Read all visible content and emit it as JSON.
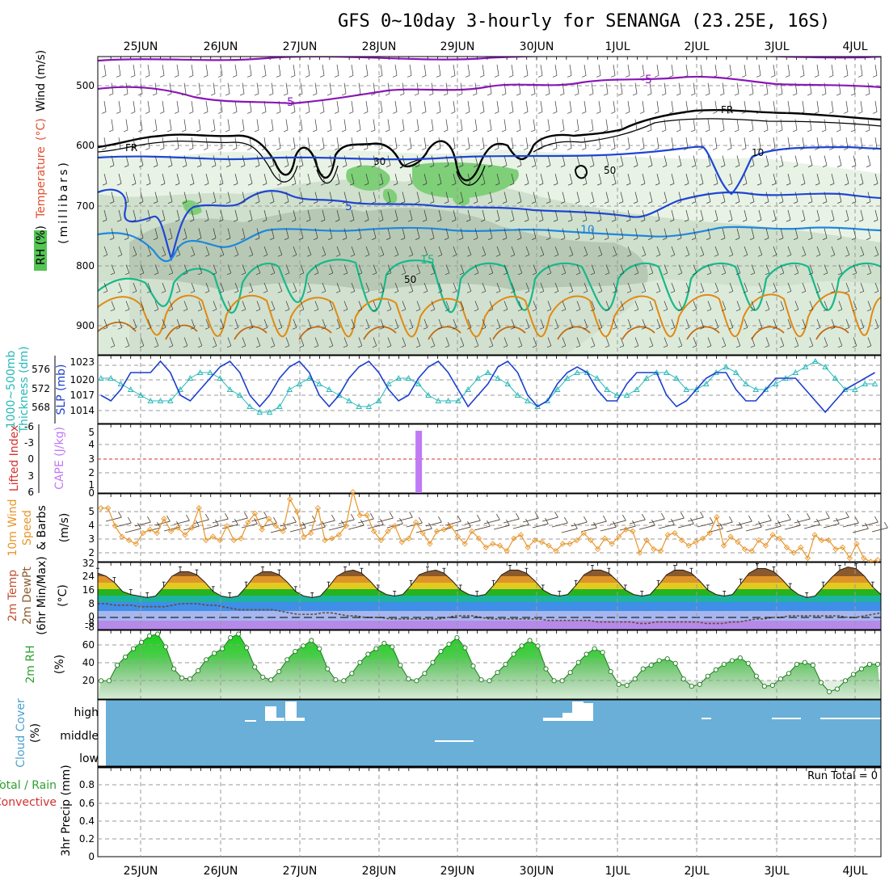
{
  "title": "GFS 0~10day 3-hourly for SENANGA (23.25E, 16S)",
  "date_labels": [
    "25JUN",
    "26JUN",
    "27JUN",
    "28JUN",
    "29JUN",
    "30JUN",
    "1JUL",
    "2JUL",
    "3JUL",
    "4JUL"
  ],
  "colors": {
    "rh_fill": [
      "#e6f1e4",
      "#c9dcc6",
      "#b0c4ad",
      "#7fcf78"
    ],
    "temp_neg5": "#8a16b8",
    "temp_5": "#1f46d6",
    "temp_10": "#1e88e0",
    "temp_15": "#19b88a",
    "temp_warm": "#e08a12",
    "freezing": "#000000",
    "slp": "#1c3fcf",
    "thickness": "#28b8b8",
    "cape": "#c07af5",
    "lifted": "#d43030",
    "wind10": "#e8962a",
    "rh2m": "#2fa02f",
    "cloud": "#6aafd8",
    "run_total": "#000000"
  },
  "panels": {
    "upper": {
      "labels": [
        "RH (%)",
        "Temperature",
        "(°C)",
        "Wind (m/s)"
      ],
      "axis_label": "(millibars)",
      "ticks": [
        "500",
        "600",
        "700",
        "800",
        "900"
      ],
      "contour_labels": [
        "-5",
        "-5",
        "FR",
        "FR",
        "5",
        "10",
        "15",
        "30",
        "50",
        "50",
        "10"
      ]
    },
    "slp": {
      "left_labels": [
        "1000~500mb",
        "Thickness (dm)"
      ],
      "right_label": "SLP (mb)",
      "left_ticks": [
        "576",
        "572",
        "568"
      ],
      "right_ticks": [
        "1023",
        "1020",
        "1017",
        "1014"
      ]
    },
    "cape": {
      "left_label": "Lifted Index",
      "right_label": "CAPE (J/kg)",
      "left_ticks": [
        "-6",
        "-3",
        "0",
        "3",
        "6"
      ],
      "right_ticks": [
        "5",
        "4",
        "3",
        "2",
        "1",
        "0"
      ]
    },
    "wind10": {
      "labels": [
        "10m Wind",
        "Speed",
        "& Barbs",
        "(m/s)"
      ],
      "ticks": [
        "5",
        "4",
        "3",
        "2"
      ]
    },
    "temp2m": {
      "labels": [
        "2m Temp",
        "2m DewPt",
        "(6hr Min/Max)",
        "(°C)"
      ],
      "ticks": [
        "32",
        "24",
        "16",
        "8",
        "0",
        "-8",
        "-8"
      ]
    },
    "rh2m": {
      "labels": [
        "2m RH",
        "(%)"
      ],
      "ticks": [
        "60",
        "40",
        "20"
      ]
    },
    "cloud": {
      "labels": [
        "Cloud Cover",
        "(%)"
      ],
      "ticks": [
        "high",
        "middle",
        "low"
      ]
    },
    "precip": {
      "labels": [
        "Total / Rain",
        "Convective",
        "3hr Precip (mm)"
      ],
      "ticks": [
        "0.8",
        "0.6",
        "0.4",
        "0.2",
        "0"
      ],
      "run_total": "Run Total = 0"
    }
  },
  "chart_data": [
    {
      "type": "line",
      "title": "SLP (mb)",
      "x_start": "2025-06-24T12:00",
      "x_step_hours": 3,
      "ylim": [
        1012,
        1024
      ],
      "series": [
        {
          "name": "SLP (mb)",
          "values": [
            1017,
            1016,
            1018,
            1021,
            1021,
            1021,
            1023,
            1021,
            1017,
            1016,
            1018,
            1020,
            1022,
            1023,
            1021,
            1017,
            1015,
            1017,
            1020,
            1022,
            1023,
            1021,
            1017,
            1015,
            1017,
            1020,
            1022,
            1023,
            1021,
            1018,
            1016,
            1017,
            1020,
            1022,
            1023,
            1021,
            1018,
            1015,
            1017,
            1019,
            1022,
            1023,
            1021,
            1017,
            1015,
            1016,
            1019,
            1021,
            1022,
            1021,
            1018,
            1016,
            1016,
            1019,
            1021,
            1021,
            1021,
            1017,
            1015,
            1016,
            1018,
            1020,
            1021,
            1021,
            1018,
            1016,
            1016,
            1018,
            1020,
            1020,
            1020,
            1018,
            1016,
            1014,
            1016,
            1018,
            1019,
            1020,
            1021
          ]
        }
      ]
    },
    {
      "type": "line",
      "title": "1000~500mb Thickness (dm)",
      "x_start": "2025-06-24T12:00",
      "x_step_hours": 3,
      "ylim": [
        566,
        578
      ],
      "series": [
        {
          "name": "1000~500mb Thickness (dm)",
          "values": [
            574,
            574,
            573,
            572,
            571,
            570,
            570,
            570,
            572,
            574,
            575,
            575,
            574,
            572,
            571,
            569,
            568,
            568,
            569,
            572,
            573,
            574,
            573,
            572,
            571,
            570,
            569,
            569,
            570,
            573,
            574,
            574,
            573,
            571,
            570,
            570,
            570,
            572,
            574,
            575,
            574,
            573,
            571,
            570,
            569,
            570,
            572,
            574,
            575,
            575,
            574,
            572,
            571,
            571,
            572,
            574,
            575,
            575,
            574,
            572,
            572,
            573,
            575,
            576,
            575,
            573,
            572,
            572,
            573,
            574,
            575,
            576,
            577,
            576,
            574,
            572,
            572,
            573,
            573
          ]
        }
      ]
    },
    {
      "type": "bar",
      "title": "CAPE (J/kg)",
      "categories": [
        "28JUN 12Z"
      ],
      "values": [
        5
      ],
      "ylim": [
        0,
        5
      ]
    },
    {
      "type": "line",
      "title": "10m Wind Speed (m/s)",
      "x_start": "2025-06-24T12:00",
      "x_step_hours": 3,
      "ylim": [
        1.8,
        5.6
      ],
      "series": [
        {
          "name": "10m Wind Speed (m/s)",
          "values": [
            4.8,
            4.8,
            3.8,
            3.2,
            3.0,
            2.8,
            3.4,
            3.6,
            3.4,
            4.2,
            3.5,
            3.7,
            3.3,
            3.7,
            4.8,
            3.0,
            3.2,
            3.0,
            3.8,
            3.0,
            3.1,
            4.0,
            4.5,
            3.6,
            4.2,
            3.8,
            3.5,
            5.3,
            4.6,
            3.2,
            3.4,
            4.8,
            3.0,
            3.1,
            3.3,
            3.8,
            5.7,
            4.4,
            4.4,
            3.5,
            3.0,
            3.5,
            3.8,
            2.9,
            3.1,
            4.0,
            3.4,
            2.8,
            3.5,
            3.6,
            3.8,
            3.2,
            2.8,
            3.5,
            3.1,
            2.6,
            2.8,
            2.7,
            2.4,
            3.1,
            3.3,
            2.6,
            3.0,
            2.9,
            2.7,
            2.4,
            2.8,
            2.8,
            3.0,
            3.4,
            3.0,
            2.5,
            3.1,
            2.8,
            3.2,
            3.6,
            3.5,
            2.3,
            3.0,
            2.5,
            2.4,
            3.3,
            3.4,
            3.0,
            2.7,
            2.9,
            3.1,
            3.4,
            4.3,
            2.7,
            3.2,
            2.9,
            2.5,
            2.4,
            3.0,
            2.7,
            3.3,
            3.1,
            2.6,
            2.3,
            2.6,
            2.0,
            3.3,
            3.0,
            3.0,
            2.5,
            2.6,
            2.0,
            2.8,
            2.0,
            1.8,
            1.9
          ]
        }
      ]
    },
    {
      "type": "area",
      "title": "2m Temp (°C)",
      "x_start": "2025-06-24T12:00",
      "x_step_hours": 3,
      "ylim": [
        -11,
        33
      ],
      "series": [
        {
          "name": "2m Temp (°C)",
          "values": [
            26,
            24,
            20,
            14,
            12,
            11,
            10,
            11,
            17,
            24,
            27,
            27,
            25,
            20,
            14,
            11,
            10,
            11,
            17,
            24,
            27,
            27,
            25,
            20,
            14,
            11,
            10,
            11,
            17,
            24,
            27,
            28,
            26,
            21,
            15,
            12,
            11,
            12,
            18,
            25,
            27,
            28,
            26,
            21,
            15,
            12,
            11,
            12,
            18,
            25,
            28,
            28,
            26,
            21,
            15,
            12,
            11,
            12,
            18,
            25,
            28,
            28,
            26,
            21,
            15,
            12,
            11,
            12,
            18,
            25,
            28,
            28,
            26,
            21,
            15,
            12,
            11,
            12,
            19,
            26,
            29,
            29,
            27,
            22,
            16,
            12,
            10,
            11,
            17,
            23,
            28,
            30,
            29,
            24,
            17,
            12
          ]
        },
        {
          "name": "2m DewPt (°C)",
          "values": [
            6,
            6,
            5,
            5,
            5,
            4,
            4,
            4,
            4,
            5,
            6,
            6,
            6,
            5,
            5,
            4,
            3,
            2,
            2,
            2,
            2,
            2,
            1,
            0,
            -1,
            -1,
            -1,
            0,
            0,
            -1,
            -2,
            -2,
            -3,
            -3,
            -3,
            -4,
            -4,
            -4,
            -4,
            -4,
            -4,
            -4,
            -3,
            -2,
            -2,
            -2,
            -3,
            -4,
            -4,
            -4,
            -4,
            -4,
            -4,
            -4,
            -5,
            -5,
            -5,
            -5,
            -5,
            -5,
            -6,
            -6,
            -6,
            -6,
            -6,
            -7,
            -7,
            -6,
            -6,
            -6,
            -6,
            -6,
            -6,
            -7,
            -7,
            -7,
            -6,
            -6,
            -5,
            -4,
            -4,
            -3,
            -3,
            -2,
            -2,
            -2,
            -2,
            -2,
            -2,
            -2,
            -3,
            -3,
            -2,
            -1,
            0
          ]
        }
      ]
    },
    {
      "type": "area",
      "title": "2m RH (%)",
      "x_start": "2025-06-24T12:00",
      "x_step_hours": 3,
      "ylim": [
        0,
        75
      ],
      "series": [
        {
          "name": "2m RH (%)",
          "values": [
            20,
            20,
            37,
            46,
            55,
            62,
            69,
            71,
            57,
            33,
            23,
            22,
            31,
            43,
            50,
            55,
            67,
            71,
            56,
            35,
            24,
            21,
            30,
            43,
            52,
            58,
            64,
            55,
            33,
            21,
            20,
            28,
            40,
            49,
            55,
            61,
            57,
            37,
            22,
            20,
            28,
            40,
            52,
            60,
            67,
            56,
            36,
            21,
            20,
            29,
            38,
            49,
            58,
            64,
            58,
            33,
            20,
            20,
            29,
            40,
            49,
            55,
            51,
            30,
            16,
            15,
            22,
            33,
            37,
            42,
            44,
            39,
            22,
            14,
            16,
            25,
            32,
            38,
            42,
            45,
            39,
            25,
            14,
            15,
            22,
            28,
            38,
            40,
            37,
            18,
            8,
            11,
            20,
            27,
            33,
            38,
            38
          ]
        }
      ]
    },
    {
      "type": "bar",
      "title": "Cloud Cover (%)",
      "categories": [
        "26JUN 12Z",
        "26JUN 15Z",
        "26JUN 18Z",
        "26JUN 21Z",
        "28JUN 15Z",
        "30JUN 03Z",
        "30JUN 06Z",
        "30JUN 09Z",
        "30JUN 12Z",
        "30JUN 15Z",
        "2JUL 03Z",
        "2JUL 21Z",
        "3JUL 00Z",
        "3JUL 15Z",
        "3JUL 18Z",
        "3JUL 21Z"
      ],
      "series": [
        {
          "name": "high",
          "values": [
            0,
            60,
            20,
            80,
            0,
            20,
            20,
            60,
            80,
            100,
            20,
            20,
            20,
            20,
            20,
            20
          ]
        },
        {
          "name": "middle",
          "values": [
            0,
            0,
            0,
            0,
            10,
            0,
            0,
            0,
            0,
            0,
            0,
            0,
            0,
            0,
            0,
            0
          ]
        }
      ],
      "ylim": [
        0,
        100
      ]
    },
    {
      "type": "bar",
      "title": "3hr Precip (mm)",
      "categories": [],
      "values": [],
      "ylim": [
        0,
        0.9
      ]
    }
  ]
}
